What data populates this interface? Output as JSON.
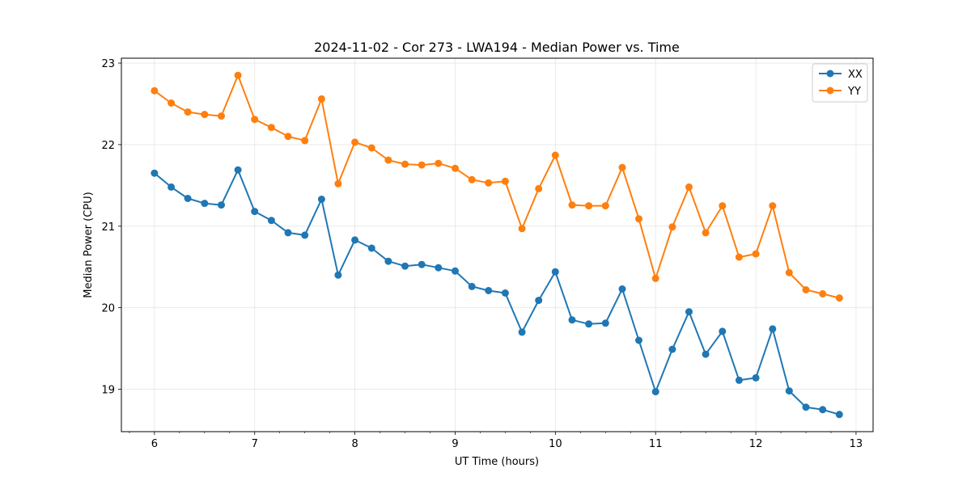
{
  "chart_data": {
    "type": "line",
    "title": "2024-11-02 - Cor 273 - LWA194 - Median Power vs. Time",
    "xlabel": "UT Time (hours)",
    "ylabel": "Median Power (CPU)",
    "xlim": [
      5.67,
      13.17
    ],
    "ylim": [
      18.48,
      23.06
    ],
    "xticks": [
      6,
      7,
      8,
      9,
      10,
      11,
      12,
      13
    ],
    "yticks": [
      19,
      20,
      21,
      22,
      23
    ],
    "grid": true,
    "legend_position": "top-right",
    "x": [
      6.0,
      6.167,
      6.333,
      6.5,
      6.667,
      6.833,
      7.0,
      7.167,
      7.333,
      7.5,
      7.667,
      7.833,
      8.0,
      8.167,
      8.333,
      8.5,
      8.667,
      8.833,
      9.0,
      9.167,
      9.333,
      9.5,
      9.667,
      9.833,
      10.0,
      10.167,
      10.333,
      10.5,
      10.667,
      10.833,
      11.0,
      11.167,
      11.333,
      11.5,
      11.667,
      11.833,
      12.0,
      12.167,
      12.333,
      12.5,
      12.667,
      12.833
    ],
    "series": [
      {
        "name": "XX",
        "color": "#1f77b4",
        "values": [
          21.65,
          21.48,
          21.34,
          21.28,
          21.26,
          21.69,
          21.18,
          21.07,
          20.92,
          20.89,
          21.33,
          20.4,
          20.83,
          20.73,
          20.57,
          20.51,
          20.53,
          20.49,
          20.45,
          20.26,
          20.21,
          20.18,
          19.7,
          20.09,
          20.44,
          19.85,
          19.8,
          19.81,
          20.23,
          19.6,
          18.97,
          19.49,
          19.95,
          19.43,
          19.71,
          19.11,
          19.14,
          19.74,
          18.98,
          18.78,
          18.75,
          18.69
        ]
      },
      {
        "name": "YY",
        "color": "#ff7f0e",
        "values": [
          22.66,
          22.51,
          22.4,
          22.37,
          22.35,
          22.85,
          22.31,
          22.21,
          22.1,
          22.05,
          22.56,
          21.52,
          22.03,
          21.96,
          21.81,
          21.76,
          21.75,
          21.77,
          21.71,
          21.57,
          21.53,
          21.55,
          20.97,
          21.46,
          21.87,
          21.26,
          21.25,
          21.25,
          21.72,
          21.09,
          20.36,
          20.99,
          21.48,
          20.92,
          21.25,
          20.62,
          20.66,
          21.25,
          20.43,
          20.22,
          20.17,
          20.12
        ]
      }
    ]
  }
}
